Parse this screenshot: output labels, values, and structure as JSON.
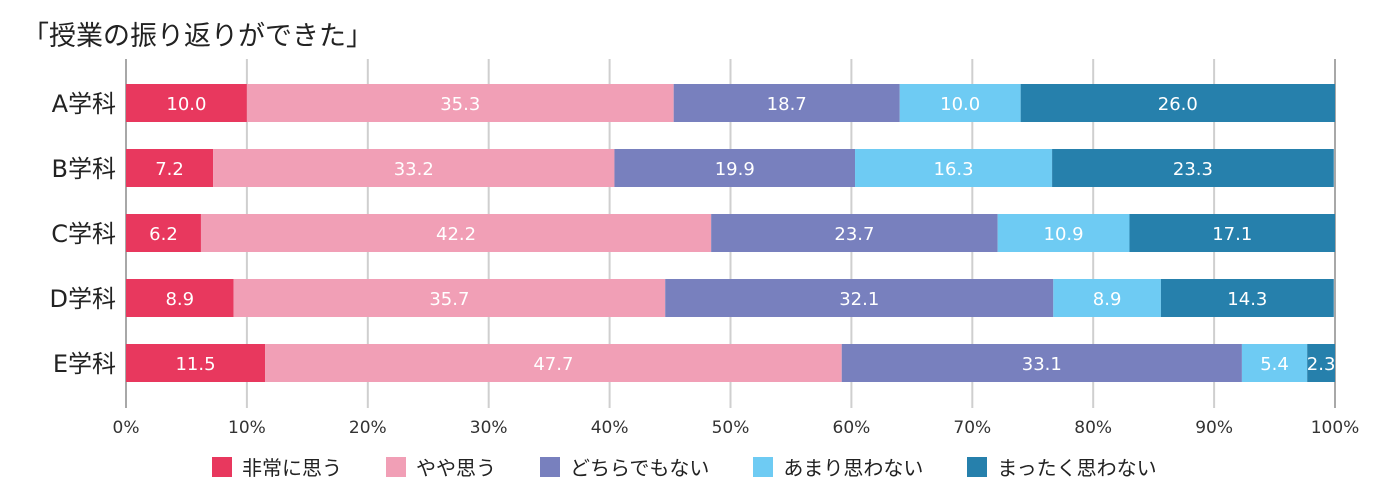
{
  "title": "「授業の振り返りができた」",
  "chart_data": {
    "type": "bar",
    "orientation": "horizontal",
    "stacked": true,
    "categories": [
      "A学科",
      "B学科",
      "C学科",
      "D学科",
      "E学科"
    ],
    "series": [
      {
        "name": "非常に思う",
        "color": "#e8385e",
        "values": [
          10.0,
          7.2,
          6.2,
          8.9,
          11.5
        ]
      },
      {
        "name": "やや思う",
        "color": "#f19fb6",
        "values": [
          35.3,
          33.2,
          42.2,
          35.7,
          47.7
        ]
      },
      {
        "name": "どちらでもない",
        "color": "#7880be",
        "values": [
          18.7,
          19.9,
          23.7,
          32.1,
          33.1
        ]
      },
      {
        "name": "あまり思わない",
        "color": "#6ecbf3",
        "values": [
          10.0,
          16.3,
          10.9,
          8.9,
          5.4
        ]
      },
      {
        "name": "まったく思わない",
        "color": "#2680ac",
        "values": [
          26.0,
          23.3,
          17.1,
          14.3,
          2.3
        ]
      }
    ],
    "xlim": [
      0,
      100
    ],
    "xticks": [
      "0%",
      "10%",
      "20%",
      "30%",
      "40%",
      "50%",
      "60%",
      "70%",
      "80%",
      "90%",
      "100%"
    ],
    "grid": true,
    "legend_position": "bottom"
  }
}
